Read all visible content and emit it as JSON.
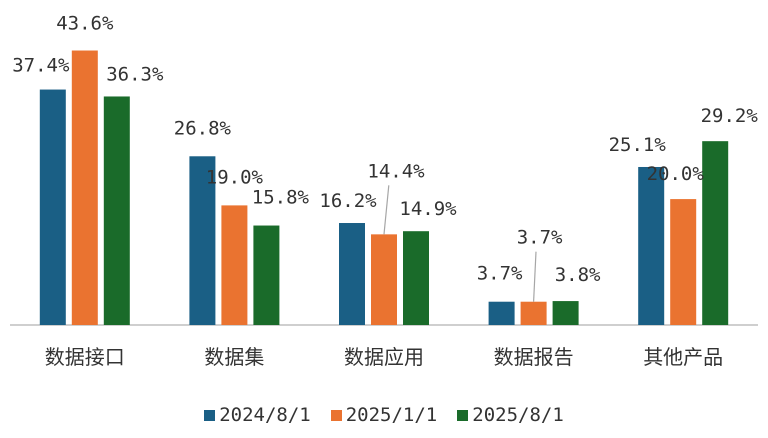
{
  "chart_data": {
    "type": "bar",
    "categories": [
      "数据接口",
      "数据集",
      "数据应用",
      "数据报告",
      "其他产品"
    ],
    "series": [
      {
        "name": "2024/8/1",
        "color": "#1a5f85",
        "values": [
          37.4,
          26.8,
          16.2,
          3.7,
          25.1
        ],
        "labels": [
          "37.4%",
          "26.8%",
          "16.2%",
          "3.7%",
          "25.1%"
        ]
      },
      {
        "name": "2025/1/1",
        "color": "#ea7330",
        "values": [
          43.6,
          19.0,
          14.4,
          3.7,
          20.0
        ],
        "labels": [
          "43.6%",
          "19.0%",
          "14.4%",
          "3.7%",
          "20.0%"
        ]
      },
      {
        "name": "2025/8/1",
        "color": "#1a6b2a",
        "values": [
          36.3,
          15.8,
          14.9,
          3.8,
          29.2
        ],
        "labels": [
          "36.3%",
          "15.8%",
          "14.9%",
          "3.8%",
          "29.2%"
        ]
      }
    ],
    "ylim": [
      0,
      44
    ],
    "grid": false,
    "legend_position": "bottom"
  }
}
